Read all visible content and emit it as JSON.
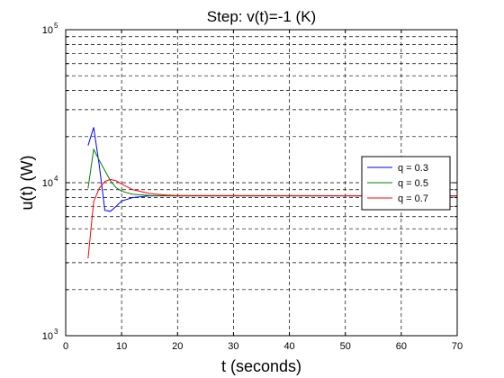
{
  "chart_data": {
    "type": "line",
    "title": "Step: v(t)=-1 (K)",
    "xlabel": "t (seconds)",
    "ylabel": "u(t) (W)",
    "xlim": [
      0,
      70
    ],
    "ylim": [
      1000,
      100000
    ],
    "yscale": "log",
    "grid": true,
    "legend_position": "right",
    "x_ticks": [
      0,
      10,
      20,
      30,
      40,
      50,
      60,
      70
    ],
    "x_tick_labels": [
      "0",
      "10",
      "20",
      "30",
      "40",
      "50",
      "60",
      "70"
    ],
    "y_ticks": [
      {
        "value": 1000,
        "base": "10",
        "exp": "3"
      },
      {
        "value": 10000,
        "base": "10",
        "exp": "4"
      },
      {
        "value": 100000,
        "base": "10",
        "exp": "5"
      }
    ],
    "series": [
      {
        "name": "q = 0.3",
        "color": "#0000ff",
        "points": [
          [
            4,
            17500
          ],
          [
            5,
            23000
          ],
          [
            6,
            13000
          ],
          [
            7,
            6600
          ],
          [
            8,
            6500
          ],
          [
            9,
            7000
          ],
          [
            10,
            7600
          ],
          [
            12,
            8000
          ],
          [
            15,
            8200
          ],
          [
            20,
            8200
          ],
          [
            70,
            8200
          ]
        ]
      },
      {
        "name": "q = 0.5",
        "color": "#008000",
        "points": [
          [
            4,
            9200
          ],
          [
            5,
            16500
          ],
          [
            6,
            14000
          ],
          [
            7,
            12000
          ],
          [
            8,
            10300
          ],
          [
            9,
            9300
          ],
          [
            10,
            8800
          ],
          [
            12,
            8400
          ],
          [
            15,
            8250
          ],
          [
            20,
            8200
          ],
          [
            70,
            8200
          ]
        ]
      },
      {
        "name": "q = 0.7",
        "color": "#ff0000",
        "points": [
          [
            4,
            3200
          ],
          [
            5,
            7500
          ],
          [
            6,
            9200
          ],
          [
            7,
            10200
          ],
          [
            8,
            10500
          ],
          [
            9,
            10300
          ],
          [
            10,
            9800
          ],
          [
            12,
            9000
          ],
          [
            15,
            8500
          ],
          [
            18,
            8300
          ],
          [
            20,
            8250
          ],
          [
            70,
            8200
          ]
        ]
      }
    ]
  }
}
